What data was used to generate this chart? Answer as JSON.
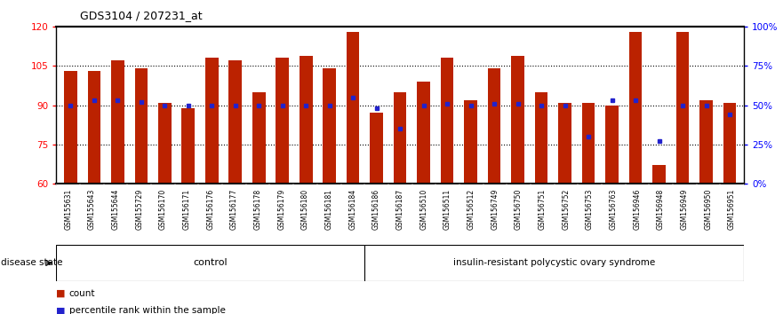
{
  "title": "GDS3104 / 207231_at",
  "samples": [
    "GSM155631",
    "GSM155643",
    "GSM155644",
    "GSM155729",
    "GSM156170",
    "GSM156171",
    "GSM156176",
    "GSM156177",
    "GSM156178",
    "GSM156179",
    "GSM156180",
    "GSM156181",
    "GSM156184",
    "GSM156186",
    "GSM156187",
    "GSM156510",
    "GSM156511",
    "GSM156512",
    "GSM156749",
    "GSM156750",
    "GSM156751",
    "GSM156752",
    "GSM156753",
    "GSM156763",
    "GSM156946",
    "GSM156948",
    "GSM156949",
    "GSM156950",
    "GSM156951"
  ],
  "bar_values": [
    103,
    103,
    107,
    104,
    91,
    89,
    108,
    107,
    95,
    108,
    109,
    104,
    118,
    87,
    95,
    99,
    108,
    92,
    104,
    109,
    95,
    91,
    91,
    90,
    118,
    67,
    118,
    92,
    91
  ],
  "percentile_values": [
    50,
    53,
    53,
    52,
    50,
    50,
    50,
    50,
    50,
    50,
    50,
    50,
    55,
    48,
    35,
    50,
    51,
    50,
    51,
    51,
    50,
    50,
    30,
    53,
    53,
    27,
    50,
    50,
    44
  ],
  "control_count": 13,
  "disease_count": 16,
  "group_labels": [
    "control",
    "insulin-resistant polycystic ovary syndrome"
  ],
  "control_color": "#ccffcc",
  "disease_color": "#66cc44",
  "bar_color": "#bb2200",
  "percentile_color": "#2222cc",
  "ylim_left": [
    60,
    120
  ],
  "ylim_right": [
    0,
    100
  ],
  "yticks_left": [
    60,
    75,
    90,
    105,
    120
  ],
  "yticks_right": [
    0,
    25,
    50,
    75,
    100
  ],
  "hgrid_at": [
    75,
    90,
    105
  ],
  "legend_items": [
    "count",
    "percentile rank within the sample"
  ],
  "xtick_bg_color": "#c8c8c8",
  "border_color": "#000000"
}
